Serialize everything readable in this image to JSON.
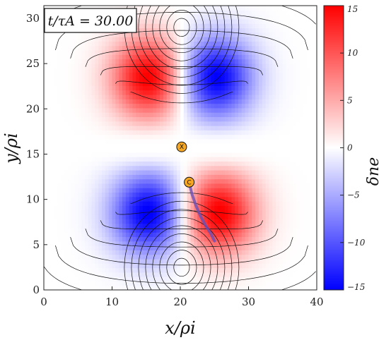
{
  "chart_data": {
    "type": "heatmap",
    "title": "",
    "xlabel": "x/ρi",
    "ylabel": "y/ρi",
    "xlim": [
      0,
      40
    ],
    "ylim": [
      0,
      31.4
    ],
    "xticks": [
      "0",
      "10",
      "20",
      "30",
      "40"
    ],
    "yticks": [
      "0",
      "5",
      "10",
      "15",
      "20",
      "25",
      "30"
    ],
    "annotation": "t/τA = 30.00",
    "colorbar": {
      "label": "δne",
      "range": [
        -15,
        15
      ],
      "ticks": [
        "−15",
        "−10",
        "−5",
        "0",
        "5",
        "10",
        "15"
      ],
      "colors": {
        "min": "#0000ff",
        "mid": "#ffffff",
        "max": "#ff0000"
      }
    },
    "points": [
      {
        "label": "X",
        "x": 20.2,
        "y": 15.8
      },
      {
        "label": "C",
        "x": 21.3,
        "y": 11.9
      }
    ],
    "trajectory": {
      "color": "#6a4fb5",
      "x": [
        21.3,
        21.7,
        22.3,
        23.0,
        23.8,
        24.5,
        25.0
      ],
      "y": [
        11.9,
        10.6,
        9.3,
        8.1,
        7.0,
        6.2,
        5.4
      ]
    }
  }
}
